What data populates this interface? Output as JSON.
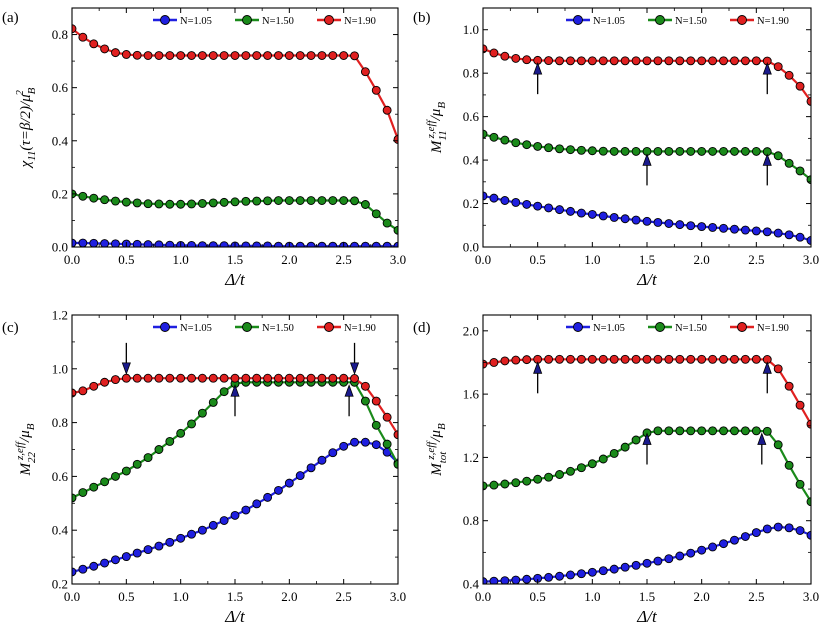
{
  "figure": {
    "legend_order": [
      "N=1.05",
      "N=1.50",
      "N=1.90"
    ]
  },
  "chart_data": [
    {
      "type": "line",
      "panel": "(a)",
      "xlabel": "Δ/t",
      "ylabel": "χ11(τ=β/2)/μB2",
      "xlim": [
        0,
        3
      ],
      "ylim": [
        0,
        0.9
      ],
      "xticks": [
        0,
        0.5,
        1,
        1.5,
        2,
        2.5,
        3
      ],
      "xticklabels": [
        "0.0",
        "0.5",
        "1.0",
        "1.5",
        "2.0",
        "2.5",
        "3.0"
      ],
      "yticks": [
        0,
        0.2,
        0.4,
        0.6,
        0.8
      ],
      "yticklabels": [
        "0.0",
        "0.2",
        "0.4",
        "0.6",
        "0.8"
      ],
      "legend": [
        "N=1.05",
        "N=1.50",
        "N=1.90"
      ],
      "arrows": [],
      "x": [
        0,
        0.1,
        0.2,
        0.3,
        0.4,
        0.5,
        0.6,
        0.7,
        0.8,
        0.9,
        1.0,
        1.1,
        1.2,
        1.3,
        1.4,
        1.5,
        1.6,
        1.7,
        1.8,
        1.9,
        2.0,
        2.1,
        2.2,
        2.3,
        2.4,
        2.5,
        2.6,
        2.7,
        2.8,
        2.9,
        3.0
      ],
      "series": [
        {
          "name": "N=1.05",
          "color": "#1f1fe0",
          "values": [
            0.015,
            0.015,
            0.014,
            0.013,
            0.012,
            0.011,
            0.01,
            0.009,
            0.008,
            0.007,
            0.006,
            0.006,
            0.005,
            0.005,
            0.005,
            0.004,
            0.004,
            0.004,
            0.004,
            0.003,
            0.003,
            0.003,
            0.003,
            0.003,
            0.003,
            0.003,
            0.003,
            0.003,
            0.003,
            0.003,
            0.003
          ]
        },
        {
          "name": "N=1.50",
          "color": "#1a8a1a",
          "values": [
            0.2,
            0.191,
            0.184,
            0.178,
            0.173,
            0.169,
            0.166,
            0.163,
            0.162,
            0.161,
            0.161,
            0.162,
            0.164,
            0.166,
            0.168,
            0.17,
            0.172,
            0.173,
            0.174,
            0.175,
            0.175,
            0.175,
            0.175,
            0.175,
            0.175,
            0.175,
            0.174,
            0.16,
            0.125,
            0.09,
            0.063
          ]
        },
        {
          "name": "N=1.90",
          "color": "#e02020",
          "values": [
            0.822,
            0.79,
            0.765,
            0.746,
            0.732,
            0.725,
            0.722,
            0.721,
            0.721,
            0.721,
            0.721,
            0.721,
            0.721,
            0.721,
            0.721,
            0.721,
            0.721,
            0.721,
            0.721,
            0.721,
            0.721,
            0.721,
            0.721,
            0.721,
            0.721,
            0.721,
            0.72,
            0.66,
            0.59,
            0.515,
            0.405
          ]
        }
      ]
    },
    {
      "type": "line",
      "panel": "(b)",
      "xlabel": "Δ/t",
      "ylabel": "M11z,eff/μB",
      "xlim": [
        0,
        3
      ],
      "ylim": [
        0,
        1.1
      ],
      "xticks": [
        0,
        0.5,
        1,
        1.5,
        2,
        2.5,
        3
      ],
      "xticklabels": [
        "0.0",
        "0.5",
        "1.0",
        "1.5",
        "2.0",
        "2.5",
        "3.0"
      ],
      "yticks": [
        0,
        0.2,
        0.4,
        0.6,
        0.8,
        1.0
      ],
      "yticklabels": [
        "0.0",
        "0.2",
        "0.4",
        "0.6",
        "0.8",
        "1.0"
      ],
      "legend": [
        "N=1.05",
        "N=1.50",
        "N=1.90"
      ],
      "arrows": [
        {
          "x": 0.5,
          "y": 0.86,
          "dir": "up"
        },
        {
          "x": 2.6,
          "y": 0.86,
          "dir": "up"
        },
        {
          "x": 1.5,
          "y": 0.44,
          "dir": "up"
        },
        {
          "x": 2.6,
          "y": 0.44,
          "dir": "up"
        }
      ],
      "x": [
        0,
        0.1,
        0.2,
        0.3,
        0.4,
        0.5,
        0.6,
        0.7,
        0.8,
        0.9,
        1.0,
        1.1,
        1.2,
        1.3,
        1.4,
        1.5,
        1.6,
        1.7,
        1.8,
        1.9,
        2.0,
        2.1,
        2.2,
        2.3,
        2.4,
        2.5,
        2.6,
        2.7,
        2.8,
        2.9,
        3.0
      ],
      "series": [
        {
          "name": "N=1.05",
          "color": "#1f1fe0",
          "values": [
            0.235,
            0.225,
            0.214,
            0.205,
            0.196,
            0.188,
            0.18,
            0.172,
            0.164,
            0.156,
            0.15,
            0.143,
            0.136,
            0.13,
            0.124,
            0.118,
            0.113,
            0.108,
            0.103,
            0.098,
            0.094,
            0.09,
            0.086,
            0.082,
            0.078,
            0.074,
            0.07,
            0.064,
            0.056,
            0.045,
            0.03
          ]
        },
        {
          "name": "N=1.50",
          "color": "#1a8a1a",
          "values": [
            0.52,
            0.505,
            0.492,
            0.48,
            0.471,
            0.463,
            0.457,
            0.452,
            0.448,
            0.445,
            0.443,
            0.441,
            0.44,
            0.44,
            0.44,
            0.44,
            0.44,
            0.44,
            0.44,
            0.44,
            0.44,
            0.44,
            0.44,
            0.44,
            0.44,
            0.44,
            0.439,
            0.42,
            0.385,
            0.35,
            0.31
          ]
        },
        {
          "name": "N=1.90",
          "color": "#e02020",
          "values": [
            0.912,
            0.893,
            0.878,
            0.868,
            0.862,
            0.859,
            0.858,
            0.857,
            0.857,
            0.857,
            0.857,
            0.857,
            0.857,
            0.857,
            0.857,
            0.857,
            0.857,
            0.857,
            0.857,
            0.857,
            0.857,
            0.857,
            0.857,
            0.857,
            0.857,
            0.857,
            0.856,
            0.83,
            0.79,
            0.74,
            0.67
          ]
        }
      ]
    },
    {
      "type": "line",
      "panel": "(c)",
      "xlabel": "Δ/t",
      "ylabel": "M22z,eff/μB",
      "xlim": [
        0,
        3
      ],
      "ylim": [
        0.2,
        1.2
      ],
      "xticks": [
        0,
        0.5,
        1,
        1.5,
        2,
        2.5,
        3
      ],
      "xticklabels": [
        "0.0",
        "0.5",
        "1.0",
        "1.5",
        "2.0",
        "2.5",
        "3.0"
      ],
      "yticks": [
        0.2,
        0.4,
        0.6,
        0.8,
        1.0,
        1.2
      ],
      "yticklabels": [
        "0.2",
        "0.4",
        "0.6",
        "0.8",
        "1.0",
        "1.2"
      ],
      "legend": [
        "N=1.05",
        "N=1.50",
        "N=1.90"
      ],
      "arrows": [
        {
          "x": 0.5,
          "y": 0.97,
          "dir": "down"
        },
        {
          "x": 2.6,
          "y": 0.97,
          "dir": "down"
        },
        {
          "x": 1.5,
          "y": 0.95,
          "dir": "up"
        },
        {
          "x": 2.55,
          "y": 0.95,
          "dir": "up"
        }
      ],
      "x": [
        0,
        0.1,
        0.2,
        0.3,
        0.4,
        0.5,
        0.6,
        0.7,
        0.8,
        0.9,
        1.0,
        1.1,
        1.2,
        1.3,
        1.4,
        1.5,
        1.6,
        1.7,
        1.8,
        1.9,
        2.0,
        2.1,
        2.2,
        2.3,
        2.4,
        2.5,
        2.6,
        2.7,
        2.8,
        2.9,
        3.0
      ],
      "series": [
        {
          "name": "N=1.05",
          "color": "#1f1fe0",
          "values": [
            0.245,
            0.255,
            0.266,
            0.278,
            0.29,
            0.302,
            0.315,
            0.328,
            0.341,
            0.355,
            0.37,
            0.385,
            0.4,
            0.418,
            0.436,
            0.455,
            0.475,
            0.498,
            0.522,
            0.548,
            0.575,
            0.603,
            0.632,
            0.66,
            0.688,
            0.712,
            0.727,
            0.727,
            0.718,
            0.69,
            0.65
          ]
        },
        {
          "name": "N=1.50",
          "color": "#1a8a1a",
          "values": [
            0.52,
            0.54,
            0.56,
            0.58,
            0.6,
            0.62,
            0.645,
            0.67,
            0.7,
            0.73,
            0.76,
            0.795,
            0.835,
            0.875,
            0.915,
            0.945,
            0.95,
            0.95,
            0.95,
            0.95,
            0.95,
            0.95,
            0.95,
            0.95,
            0.95,
            0.95,
            0.95,
            0.88,
            0.79,
            0.72,
            0.645
          ]
        },
        {
          "name": "N=1.90",
          "color": "#e02020",
          "values": [
            0.91,
            0.918,
            0.935,
            0.95,
            0.96,
            0.965,
            0.965,
            0.965,
            0.965,
            0.965,
            0.965,
            0.965,
            0.965,
            0.965,
            0.965,
            0.965,
            0.965,
            0.965,
            0.965,
            0.965,
            0.965,
            0.965,
            0.965,
            0.965,
            0.965,
            0.965,
            0.964,
            0.935,
            0.88,
            0.82,
            0.755
          ]
        }
      ]
    },
    {
      "type": "line",
      "panel": "(d)",
      "xlabel": "Δ/t",
      "ylabel": "Mtotz,eff/μB",
      "xlim": [
        0,
        3
      ],
      "ylim": [
        0.4,
        2.1
      ],
      "xticks": [
        0,
        0.5,
        1,
        1.5,
        2,
        2.5,
        3
      ],
      "xticklabels": [
        "0.0",
        "0.5",
        "1.0",
        "1.5",
        "2.0",
        "2.5",
        "3.0"
      ],
      "yticks": [
        0.4,
        0.8,
        1.2,
        1.6,
        2.0
      ],
      "yticklabels": [
        "0.4",
        "0.8",
        "1.2",
        "1.6",
        "2.0"
      ],
      "legend": [
        "N=1.05",
        "N=1.50",
        "N=1.90"
      ],
      "arrows": [
        {
          "x": 0.5,
          "y": 1.82,
          "dir": "up"
        },
        {
          "x": 2.6,
          "y": 1.82,
          "dir": "up"
        },
        {
          "x": 1.5,
          "y": 1.37,
          "dir": "up"
        },
        {
          "x": 2.55,
          "y": 1.37,
          "dir": "up"
        }
      ],
      "x": [
        0,
        0.1,
        0.2,
        0.3,
        0.4,
        0.5,
        0.6,
        0.7,
        0.8,
        0.9,
        1.0,
        1.1,
        1.2,
        1.3,
        1.4,
        1.5,
        1.6,
        1.7,
        1.8,
        1.9,
        2.0,
        2.1,
        2.2,
        2.3,
        2.4,
        2.5,
        2.6,
        2.7,
        2.8,
        2.9,
        3.0
      ],
      "series": [
        {
          "name": "N=1.05",
          "color": "#1f1fe0",
          "values": [
            0.415,
            0.418,
            0.421,
            0.425,
            0.43,
            0.436,
            0.442,
            0.449,
            0.457,
            0.465,
            0.474,
            0.484,
            0.494,
            0.506,
            0.518,
            0.531,
            0.545,
            0.56,
            0.577,
            0.595,
            0.614,
            0.634,
            0.655,
            0.677,
            0.7,
            0.725,
            0.748,
            0.76,
            0.755,
            0.738,
            0.708
          ]
        },
        {
          "name": "N=1.50",
          "color": "#1a8a1a",
          "values": [
            1.02,
            1.025,
            1.032,
            1.04,
            1.05,
            1.062,
            1.075,
            1.092,
            1.112,
            1.135,
            1.16,
            1.19,
            1.225,
            1.265,
            1.31,
            1.355,
            1.368,
            1.368,
            1.368,
            1.368,
            1.368,
            1.368,
            1.368,
            1.368,
            1.368,
            1.368,
            1.365,
            1.28,
            1.15,
            1.03,
            0.92
          ]
        },
        {
          "name": "N=1.90",
          "color": "#e02020",
          "values": [
            1.79,
            1.8,
            1.81,
            1.815,
            1.818,
            1.82,
            1.82,
            1.82,
            1.82,
            1.82,
            1.82,
            1.82,
            1.82,
            1.82,
            1.82,
            1.82,
            1.82,
            1.82,
            1.82,
            1.82,
            1.82,
            1.82,
            1.82,
            1.82,
            1.82,
            1.82,
            1.819,
            1.76,
            1.65,
            1.53,
            1.41
          ]
        }
      ]
    }
  ]
}
